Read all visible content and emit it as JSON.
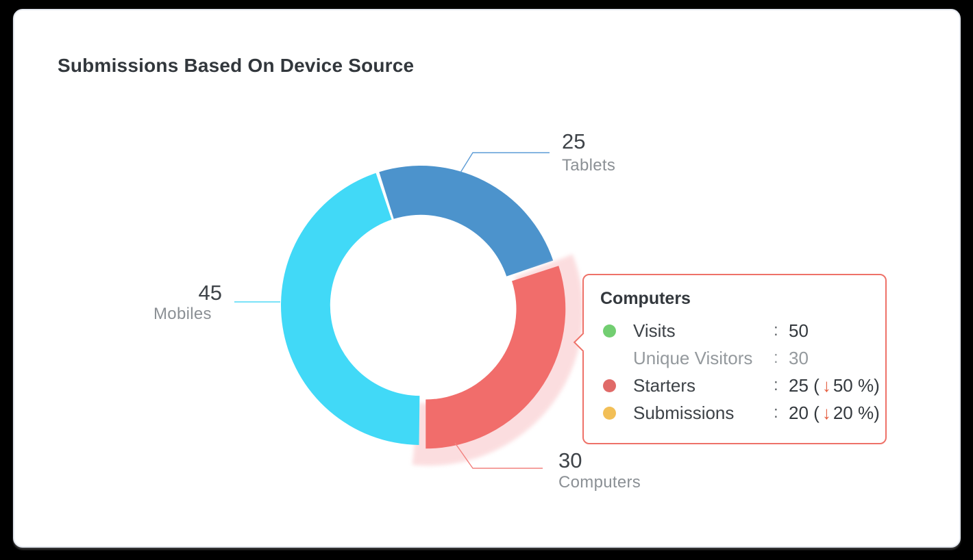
{
  "ui": {
    "background_color": "#000000",
    "card_background": "#ffffff",
    "card_border_color": "#e3e7ee"
  },
  "header": {
    "title": "Submissions Based On Device Source"
  },
  "chart_data": {
    "type": "pie",
    "subtype": "donut",
    "title": "Submissions Based On Device Source",
    "total": 100,
    "start_angle_deg": -18,
    "inner_radius_ratio": 0.648,
    "segments": [
      {
        "label": "Tablets",
        "value": 25,
        "color": "#4C93CC",
        "line_color": "#5c9bd5"
      },
      {
        "label": "Computers",
        "value": 30,
        "color": "#F16D6B",
        "line_color": "#f2817e",
        "exploded": true,
        "halo_color": "#FBD8DA"
      },
      {
        "label": "Mobiles",
        "value": 45,
        "color": "#41D9F7",
        "line_color": "#4fd8f5"
      }
    ]
  },
  "tooltip": {
    "title": "Computers",
    "border_color": "#ee7168",
    "delta_arrow_color": "#e55b3c",
    "delta_arrow": "↓",
    "rows": [
      {
        "dot": "#72CE71",
        "label": "Visits",
        "colon": ":",
        "value": "50"
      },
      {
        "dot": null,
        "label": "Unique Visitors",
        "colon": ":",
        "value": "30",
        "muted": true
      },
      {
        "dot": "#E06A68",
        "label": "Starters",
        "colon": ":",
        "value": "25",
        "delta": "50 %",
        "delta_dir": "down"
      },
      {
        "dot": "#F2BF57",
        "label": "Submissions",
        "colon": ":",
        "value": "20",
        "delta": "20 %",
        "delta_dir": "down"
      }
    ]
  }
}
